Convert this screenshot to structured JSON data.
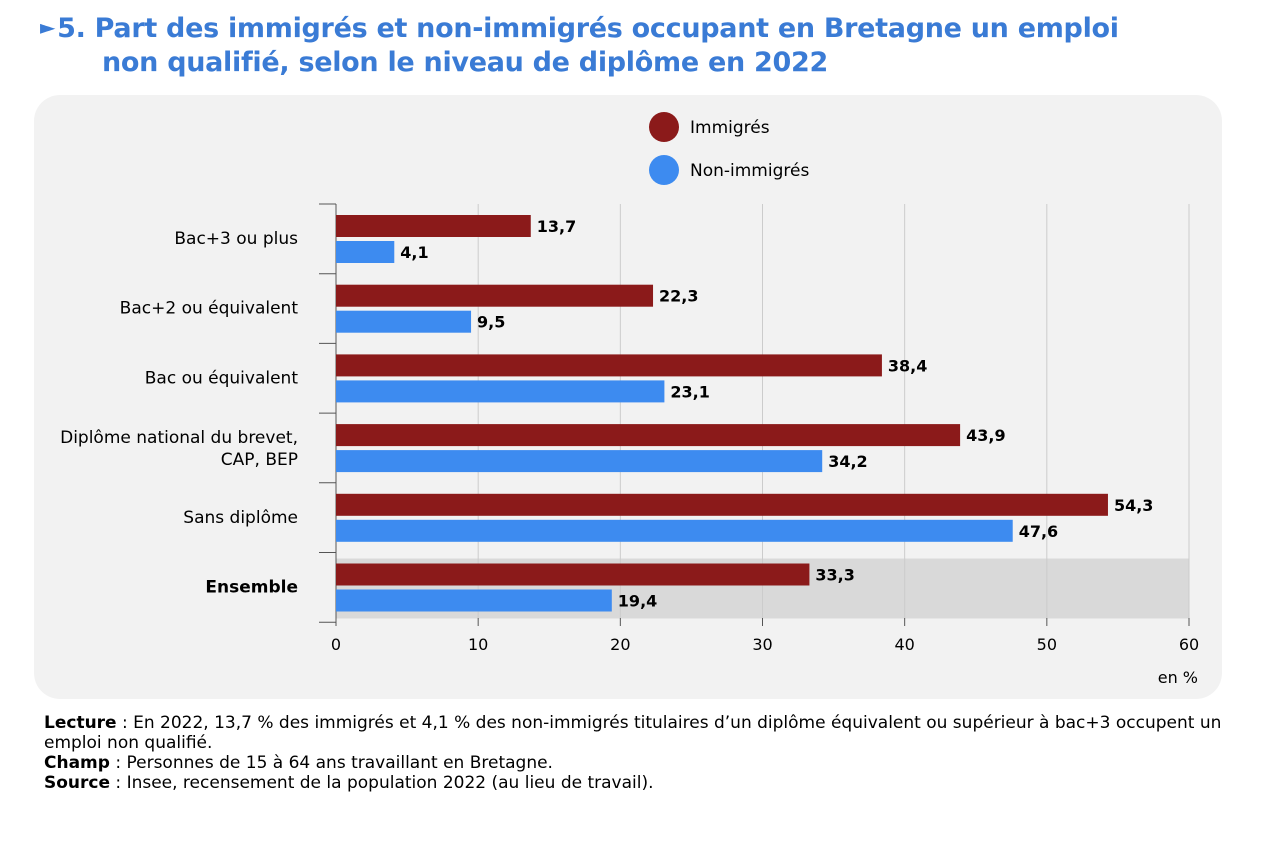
{
  "title": {
    "marker": "►",
    "line1": "5. Part des immigrés et non-immigrés occupant en Bretagne un emploi",
    "line2": "non qualifié, selon le niveau de diplôme en 2022"
  },
  "notes": {
    "lecture_label": "Lecture",
    "lecture_text": " : En 2022, 13,7 % des immigrés et 4,1 % des non-immigrés titulaires d’un diplôme équivalent ou supérieur à bac+3 occupent un emploi non qualifié.",
    "champ_label": "Champ",
    "champ_text": " : Personnes de 15 à 64 ans travaillant en Bretagne.",
    "source_label": "Source",
    "source_text": " : Insee, recensement de la population 2022 (au lieu de travail)."
  },
  "colors": {
    "immigres": "#8b1a1a",
    "non_immigres": "#3d8bf0",
    "title": "#3a7bd5",
    "highlight_band": "#d9d9d9",
    "grid": "#cccccc"
  },
  "chart_data": {
    "type": "bar",
    "orientation": "horizontal",
    "categories": [
      [
        "Bac+3 ou plus"
      ],
      [
        "Bac+2 ou équivalent"
      ],
      [
        "Bac ou équivalent"
      ],
      [
        "Diplôme national du brevet,",
        "CAP, BEP"
      ],
      [
        "Sans diplôme"
      ],
      [
        "Ensemble"
      ]
    ],
    "highlighted_category": "Ensemble",
    "series": [
      {
        "name": "Immigrés",
        "values": [
          13.7,
          22.3,
          38.4,
          43.9,
          54.3,
          33.3
        ],
        "labels": [
          "13,7",
          "22,3",
          "38,4",
          "43,9",
          "54,3",
          "33,3"
        ]
      },
      {
        "name": "Non-immigrés",
        "values": [
          4.1,
          9.5,
          23.1,
          34.2,
          47.6,
          19.4
        ],
        "labels": [
          "4,1",
          "9,5",
          "23,1",
          "34,2",
          "47,6",
          "19,4"
        ]
      }
    ],
    "xlim": [
      0,
      60
    ],
    "xticks": [
      0,
      10,
      20,
      30,
      40,
      50,
      60
    ],
    "xlabel": "en %",
    "ylabel": "",
    "grid": true,
    "legend": "top-center"
  }
}
